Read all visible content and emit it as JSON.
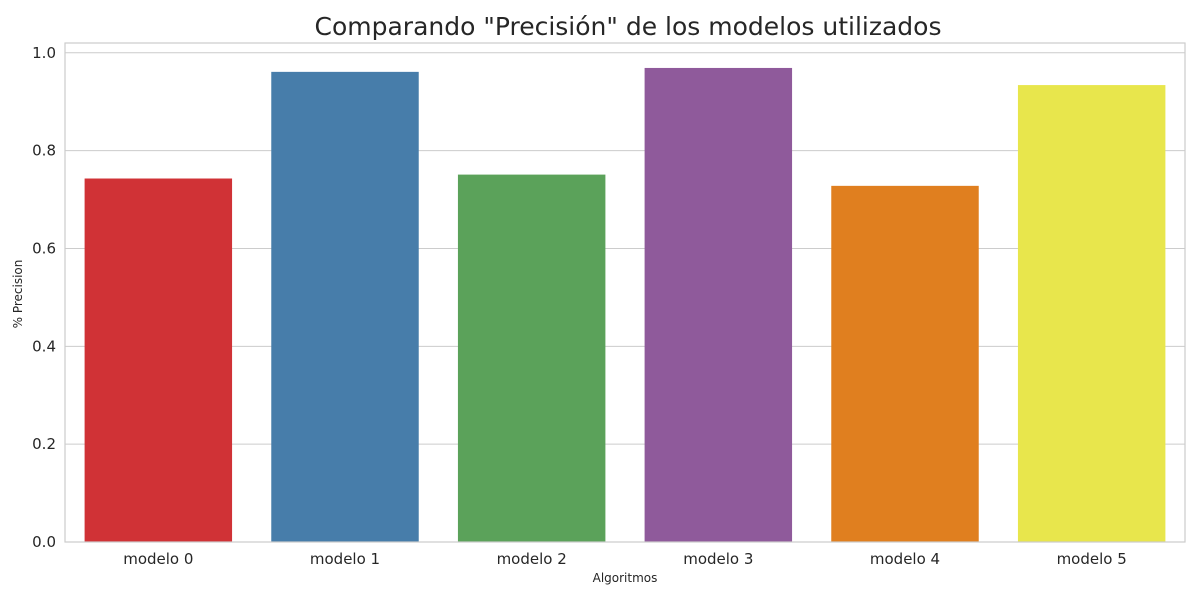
{
  "chart_data": {
    "type": "bar",
    "title": "Comparando \"Precisión\" de los modelos utilizados",
    "xlabel": "Algoritmos",
    "ylabel": "% Precision",
    "categories": [
      "modelo 0",
      "modelo 1",
      "modelo 2",
      "modelo 3",
      "modelo 4",
      "modelo 5"
    ],
    "values": [
      0.743,
      0.961,
      0.751,
      0.969,
      0.728,
      0.934
    ],
    "colors": [
      "#d03236",
      "#477daa",
      "#5ba25a",
      "#8f5a9b",
      "#e07f1f",
      "#e8e64c"
    ],
    "ylim": [
      0,
      1.02
    ],
    "yticks": [
      "0.0",
      "0.2",
      "0.4",
      "0.6",
      "0.8",
      "1.0"
    ],
    "grid": true,
    "legend": "none"
  }
}
